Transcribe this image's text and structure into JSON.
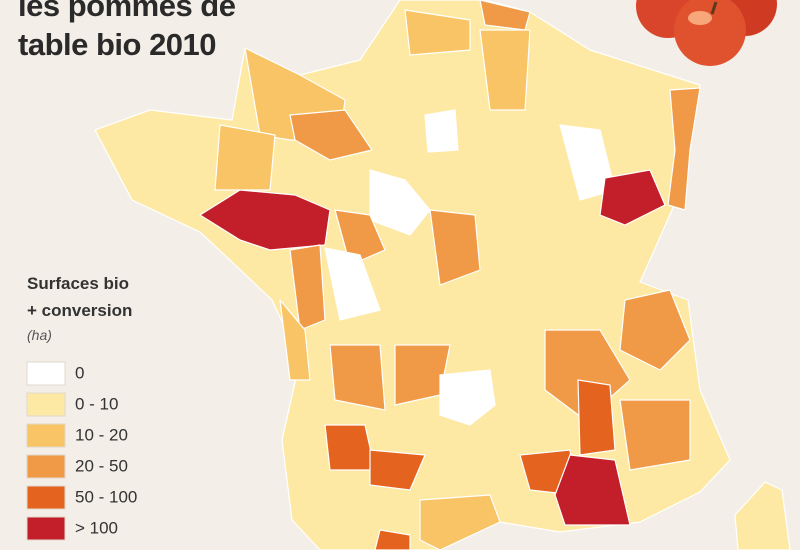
{
  "title_lines": [
    "les pommes de",
    "table bio 2010"
  ],
  "legend": {
    "title_lines": [
      "Surfaces bio",
      "+ conversion"
    ],
    "unit": "(ha)",
    "items": [
      {
        "label": "0",
        "color": "#ffffff"
      },
      {
        "label": "0 - 10",
        "color": "#fde9a3"
      },
      {
        "label": "10 - 20",
        "color": "#f8c465"
      },
      {
        "label": "20 - 50",
        "color": "#f09a48"
      },
      {
        "label": "50 - 100",
        "color": "#e4631e"
      },
      {
        "label": "> 100",
        "color": "#c31f2a"
      }
    ]
  }
}
